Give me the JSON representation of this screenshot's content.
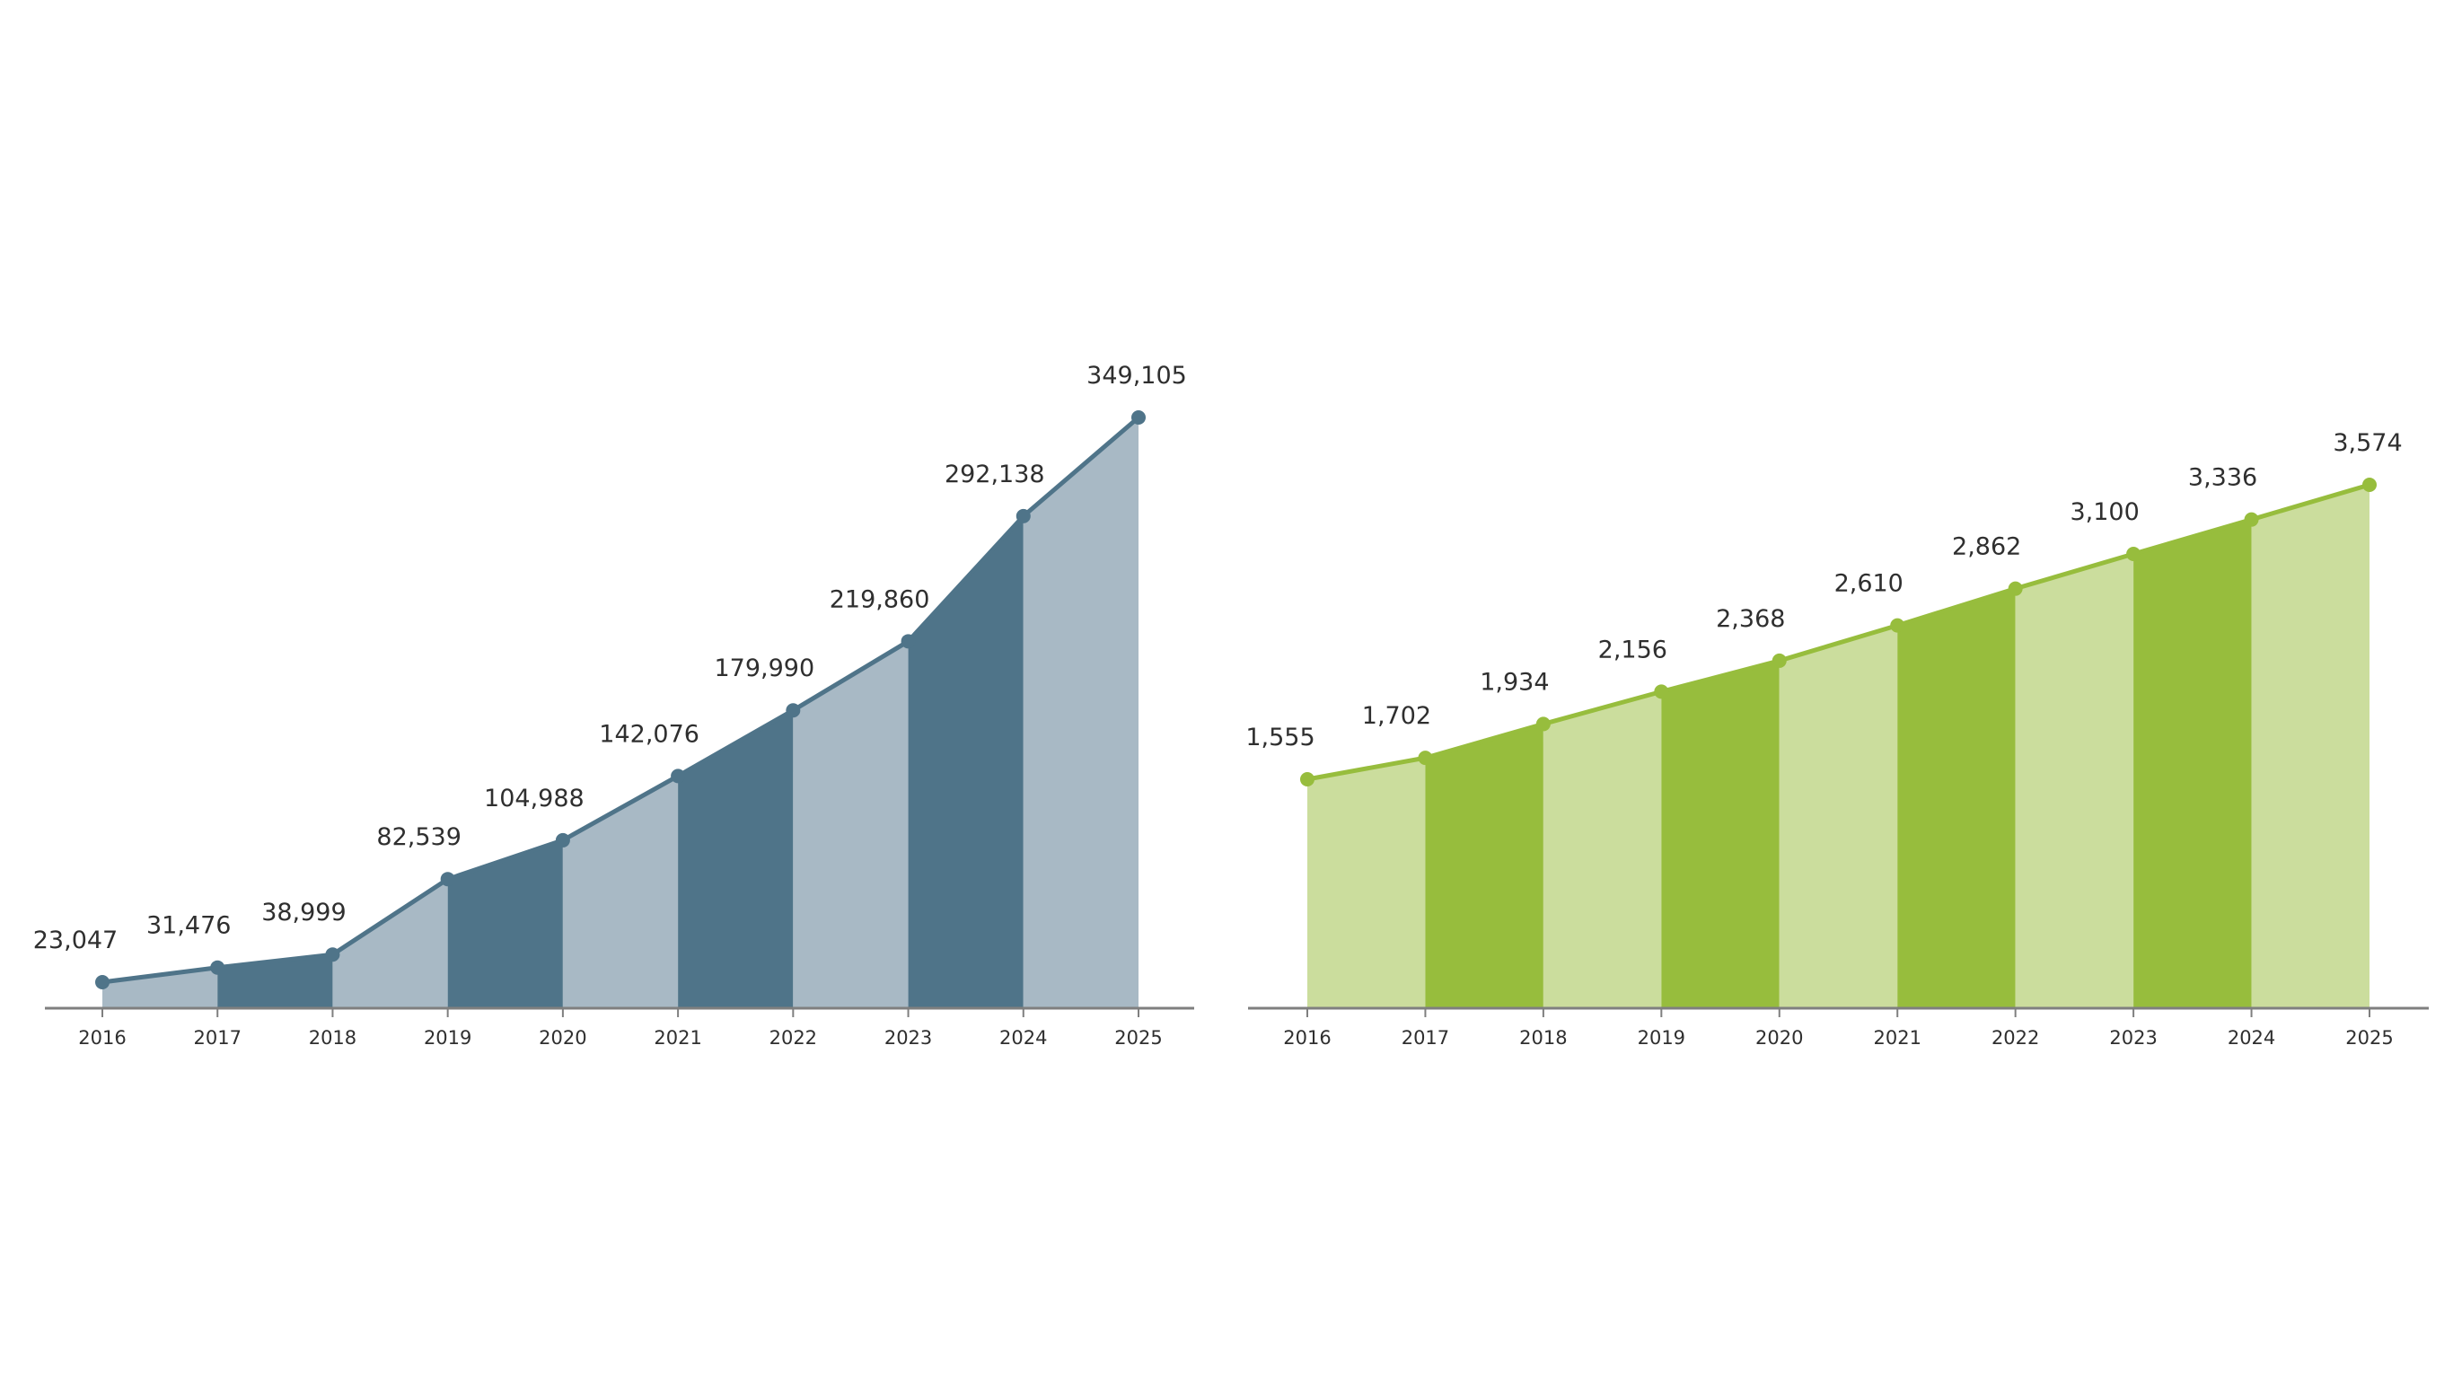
{
  "chart_data": [
    {
      "type": "area",
      "categories": [
        "2016",
        "2017",
        "2018",
        "2019",
        "2020",
        "2021",
        "2022",
        "2023",
        "2024",
        "2025"
      ],
      "series": [
        {
          "values": [
            23047,
            31476,
            38999,
            82539,
            104988,
            142076,
            179990,
            219860,
            292138,
            349105
          ]
        }
      ],
      "value_labels": [
        "23,047",
        "31,476",
        "38,999",
        "82,539",
        "104,988",
        "142,076",
        "179,990",
        "219,860",
        "292,138",
        "349,105"
      ],
      "colors": {
        "line": "#4f7489",
        "dark_fill": "#4f7489",
        "light_fill": "#a8b9c5",
        "axis": "#7f7f7f"
      },
      "grid": false
    },
    {
      "type": "area",
      "categories": [
        "2016",
        "2017",
        "2018",
        "2019",
        "2020",
        "2021",
        "2022",
        "2023",
        "2024",
        "2025"
      ],
      "series": [
        {
          "values": [
            1555,
            1702,
            1934,
            2156,
            2368,
            2610,
            2862,
            3100,
            3336,
            3574
          ]
        }
      ],
      "value_labels": [
        "1,555",
        "1,702",
        "1,934",
        "2,156",
        "2,368",
        "2,610",
        "2,862",
        "3,100",
        "3,336",
        "3,574"
      ],
      "colors": {
        "line": "#97bd3d",
        "dark_fill": "#97bd3d",
        "light_fill": "#cbdd9d",
        "axis": "#7f7f7f"
      },
      "grid": false
    }
  ]
}
